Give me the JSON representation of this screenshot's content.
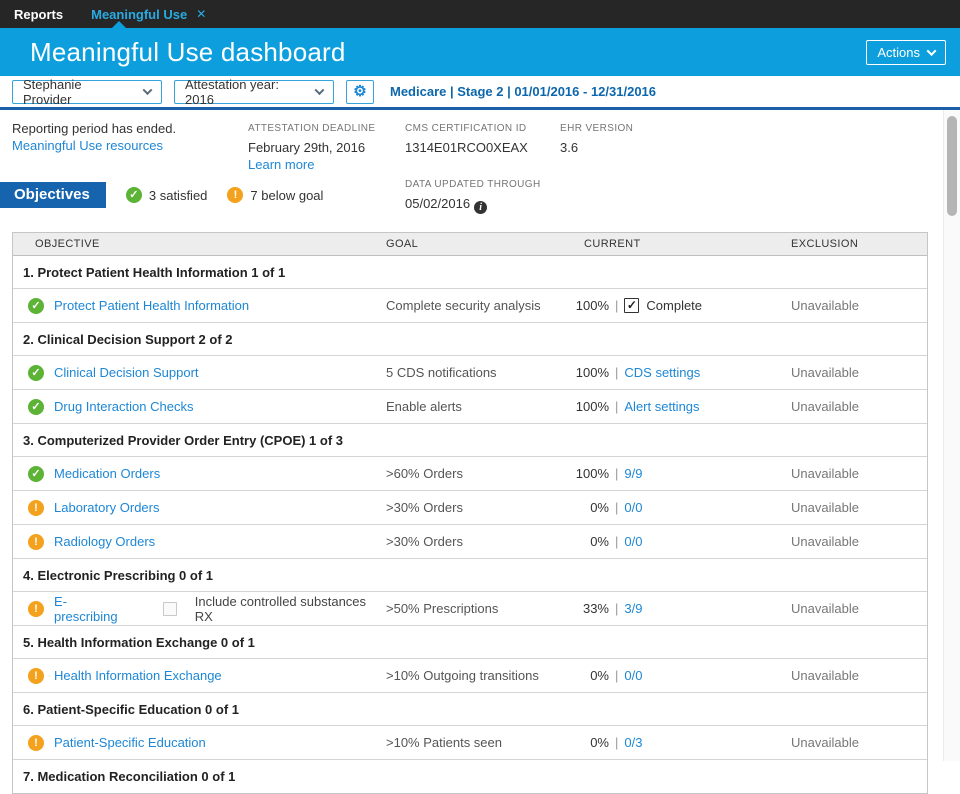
{
  "tabs": {
    "reports": "Reports",
    "active": "Meaningful Use"
  },
  "header": {
    "title": "Meaningful Use dashboard",
    "actions_label": "Actions"
  },
  "filters": {
    "provider": "Stephanie Provider",
    "year": "Attestation year: 2016",
    "gear_icon": "gear-icon",
    "context": "Medicare | Stage 2 | 01/01/2016 - 12/31/2016"
  },
  "info": {
    "reporting_status": "Reporting period has ended.",
    "resources_link": "Meaningful Use resources",
    "attestation_deadline_label": "ATTESTATION DEADLINE",
    "attestation_deadline_value": "February 29th, 2016",
    "learn_more_link": "Learn more",
    "cms_id_label": "CMS CERTIFICATION ID",
    "cms_id_value": "1314E01RCO0XEAX",
    "ehr_version_label": "EHR VERSION",
    "ehr_version_value": "3.6",
    "data_updated_label": "DATA UPDATED THROUGH",
    "data_updated_value": "05/02/2016"
  },
  "objectives_bar": {
    "badge": "Objectives",
    "satisfied": "3 satisfied",
    "below_goal": "7 below goal"
  },
  "colors": {
    "header_blue": "#0d9fdd",
    "accent_dark_blue": "#1663ae",
    "link_blue": "#1e87d5",
    "satisfied_green": "#5cb336",
    "warning_orange": "#f4a11d"
  },
  "table": {
    "headers": [
      "OBJECTIVE",
      "GOAL",
      "CURRENT",
      "EXCLUSION"
    ],
    "rows": [
      {
        "type": "section",
        "label": "1. Protect Patient Health Information 1 of 1"
      },
      {
        "type": "item",
        "status": "satisfied",
        "label": "Protect Patient Health Information",
        "goal": "Complete security analysis",
        "pct": "100%",
        "current_kind": "checkbox",
        "current_label": "Complete",
        "exclusion": "Unavailable"
      },
      {
        "type": "section",
        "label": "2. Clinical Decision Support 2 of 2"
      },
      {
        "type": "item",
        "status": "satisfied",
        "label": "Clinical Decision Support",
        "goal": "5 CDS notifications",
        "pct": "100%",
        "current_kind": "link",
        "current_label": "CDS settings",
        "exclusion": "Unavailable"
      },
      {
        "type": "item",
        "status": "satisfied",
        "label": "Drug Interaction Checks",
        "goal": "Enable alerts",
        "pct": "100%",
        "current_kind": "link",
        "current_label": "Alert settings",
        "exclusion": "Unavailable"
      },
      {
        "type": "section",
        "label": "3. Computerized Provider Order Entry (CPOE) 1 of 3"
      },
      {
        "type": "item",
        "status": "satisfied",
        "label": "Medication Orders",
        "goal": ">60% Orders",
        "pct": "100%",
        "current_kind": "link",
        "current_label": "9/9",
        "exclusion": "Unavailable"
      },
      {
        "type": "item",
        "status": "below",
        "label": "Laboratory Orders",
        "goal": ">30% Orders",
        "pct": "0%",
        "current_kind": "link",
        "current_label": "0/0",
        "exclusion": "Unavailable"
      },
      {
        "type": "item",
        "status": "below",
        "label": "Radiology Orders",
        "goal": ">30% Orders",
        "pct": "0%",
        "current_kind": "link",
        "current_label": "0/0",
        "exclusion": "Unavailable"
      },
      {
        "type": "section",
        "label": "4. Electronic Prescribing 0 of 1"
      },
      {
        "type": "item",
        "status": "below",
        "label": "E-prescribing",
        "checkbox_label": "Include controlled substances RX",
        "goal": ">50% Prescriptions",
        "pct": "33%",
        "current_kind": "link",
        "current_label": "3/9",
        "exclusion": "Unavailable"
      },
      {
        "type": "section",
        "label": "5. Health Information Exchange 0 of 1"
      },
      {
        "type": "item",
        "status": "below",
        "label": "Health Information Exchange",
        "goal": ">10% Outgoing transitions",
        "pct": "0%",
        "current_kind": "link",
        "current_label": "0/0",
        "exclusion": "Unavailable"
      },
      {
        "type": "section",
        "label": "6. Patient-Specific Education 0 of 1"
      },
      {
        "type": "item",
        "status": "below",
        "label": "Patient-Specific Education",
        "goal": ">10% Patients seen",
        "pct": "0%",
        "current_kind": "link",
        "current_label": "0/3",
        "exclusion": "Unavailable"
      },
      {
        "type": "section",
        "label": "7. Medication Reconciliation 0 of 1"
      }
    ]
  }
}
